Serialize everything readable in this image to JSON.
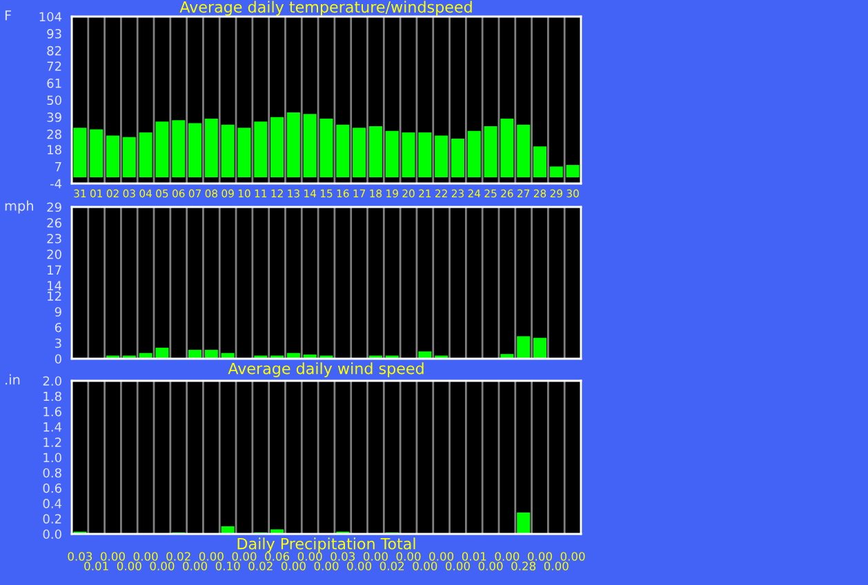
{
  "chart_data": [
    {
      "type": "bar",
      "title": "Average daily temperature/windspeed",
      "ylabel": "F",
      "categories": [
        "31",
        "01",
        "02",
        "03",
        "04",
        "05",
        "06",
        "07",
        "08",
        "09",
        "10",
        "11",
        "12",
        "13",
        "14",
        "15",
        "16",
        "17",
        "18",
        "19",
        "20",
        "21",
        "22",
        "23",
        "24",
        "25",
        "26",
        "27",
        "28",
        "29",
        "30"
      ],
      "values": [
        32,
        31,
        27,
        26,
        29,
        36,
        37,
        35,
        38,
        34,
        32,
        36,
        39,
        42,
        41,
        38,
        34,
        32,
        33,
        30,
        29,
        29,
        27,
        25,
        30,
        33,
        38,
        34,
        20,
        7,
        8
      ],
      "color": "#00ff00",
      "ylim": [
        -4,
        104
      ],
      "yticks": [
        -4,
        7,
        18,
        28,
        39,
        50,
        61,
        72,
        82,
        93,
        104
      ],
      "grid": "x"
    },
    {
      "type": "bar",
      "xlabel": "Average daily wind speed",
      "ylabel": "mph",
      "categories": [
        "31",
        "01",
        "02",
        "03",
        "04",
        "05",
        "06",
        "07",
        "08",
        "09",
        "10",
        "11",
        "12",
        "13",
        "14",
        "15",
        "16",
        "17",
        "18",
        "19",
        "20",
        "21",
        "22",
        "23",
        "24",
        "25",
        "26",
        "27",
        "28",
        "29",
        "30"
      ],
      "values": [
        0,
        0,
        0.6,
        0.6,
        1.1,
        2.1,
        0,
        1.7,
        1.7,
        1.1,
        0,
        0.6,
        0.6,
        1.1,
        0.8,
        0.6,
        0,
        0,
        0.6,
        0.6,
        0,
        1.4,
        0.6,
        0,
        0,
        0,
        0.9,
        4.3,
        4.0,
        0,
        0
      ],
      "color": "#00ff00",
      "ylim": [
        0,
        29
      ],
      "yticks": [
        0,
        3,
        6,
        9,
        12,
        14,
        17,
        20,
        23,
        26,
        29
      ],
      "grid": "x",
      "tick_labels": "y"
    },
    {
      "type": "bar",
      "xlabel": "Daily Precipitation Total",
      "ylabel": ".in",
      "categories": [
        "31",
        "01",
        "02",
        "03",
        "04",
        "05",
        "06",
        "07",
        "08",
        "09",
        "10",
        "11",
        "12",
        "13",
        "14",
        "15",
        "16",
        "17",
        "18",
        "19",
        "20",
        "21",
        "22",
        "23",
        "24",
        "25",
        "26",
        "27",
        "28",
        "29",
        "30"
      ],
      "values": [
        0.03,
        0.01,
        0,
        0,
        0,
        0,
        0.02,
        0,
        0,
        0.1,
        0,
        0.02,
        0.06,
        0,
        0,
        0,
        0.03,
        0,
        0,
        0.02,
        0,
        0,
        0,
        0,
        0.01,
        0,
        0,
        0.28,
        0,
        0,
        0
      ],
      "value_labels": [
        "0.03",
        "0.01",
        "0.00",
        "0.00",
        "0.00",
        "0.00",
        "0.02",
        "0.00",
        "0.00",
        "0.10",
        "0.00",
        "0.02",
        "0.06",
        "0.00",
        "0.00",
        "0.00",
        "0.03",
        "0.00",
        "0.00",
        "0.02",
        "0.00",
        "0.00",
        "0.00",
        "0.00",
        "0.01",
        "0.00",
        "0.00",
        "0.28",
        "0.00",
        "0.00",
        "0.00"
      ],
      "color": "#00ff00",
      "ylim": [
        0,
        2.0
      ],
      "yticks": [
        {
          "value": 0,
          "label": "0.0"
        },
        {
          "value": 0.2,
          "label": "0.2"
        },
        {
          "value": 0.4,
          "label": "0.4"
        },
        {
          "value": 0.6,
          "label": "0.6"
        },
        {
          "value": 0.8,
          "label": "0.8"
        },
        {
          "value": 1.0,
          "label": "1.0"
        },
        {
          "value": 1.2,
          "label": "1.2"
        },
        {
          "value": 1.4,
          "label": "1.4"
        },
        {
          "value": 1.6,
          "label": "1.6"
        },
        {
          "value": 1.8,
          "label": "1.8"
        },
        {
          "value": 2.0,
          "label": "2.0"
        }
      ],
      "grid": "x",
      "tick_labels": "y"
    }
  ]
}
